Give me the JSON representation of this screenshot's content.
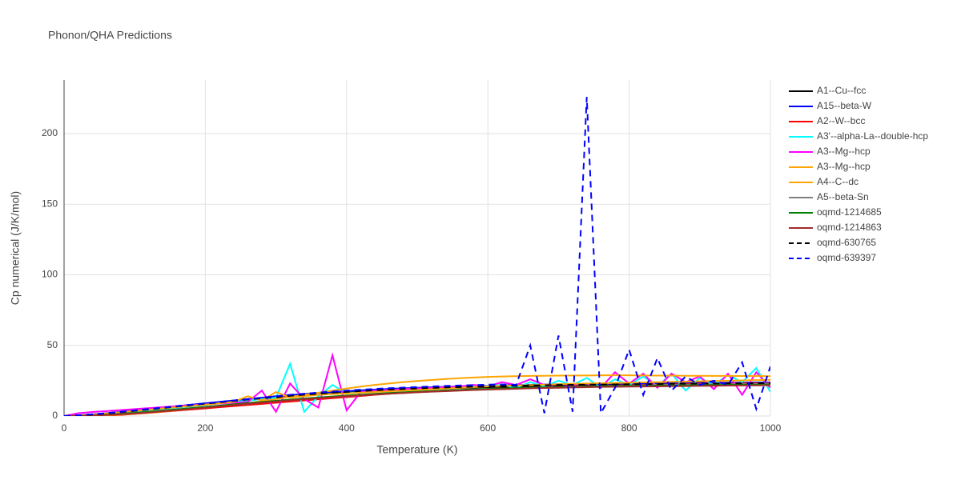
{
  "chart_data": {
    "type": "line",
    "title": "Phonon/QHA Predictions",
    "x_label": "Temperature (K)",
    "y_label": "Cp numerical (J/K/mol)",
    "xlim": [
      0,
      1000
    ],
    "ylim": [
      0,
      238
    ],
    "xticks": [
      0,
      200,
      400,
      600,
      800,
      1000
    ],
    "yticks": [
      0,
      50,
      100,
      150,
      200
    ],
    "grid": true,
    "legend": "right",
    "x": [
      0,
      20,
      40,
      60,
      80,
      100,
      120,
      140,
      160,
      180,
      200,
      220,
      240,
      260,
      280,
      300,
      320,
      340,
      360,
      380,
      400,
      420,
      440,
      460,
      480,
      500,
      520,
      540,
      560,
      580,
      600,
      620,
      640,
      660,
      680,
      700,
      720,
      740,
      760,
      780,
      800,
      820,
      840,
      860,
      880,
      900,
      920,
      940,
      960,
      980,
      1000
    ],
    "series": [
      {
        "name": "A1--Cu--fcc",
        "color": "#000000",
        "dash": "solid",
        "values": [
          0,
          0.2,
          0.6,
          1.2,
          2,
          3,
          4,
          5,
          6,
          7,
          8,
          9,
          10,
          11,
          12,
          12.8,
          13.6,
          14.4,
          15.1,
          15.8,
          16.4,
          17,
          17.5,
          18,
          18.4,
          18.8,
          19.2,
          19.5,
          19.8,
          20.1,
          20.4,
          20.6,
          20.8,
          21,
          21.2,
          21.4,
          21.6,
          21.8,
          22,
          22.1,
          22.2,
          22.3,
          22.4,
          22.5,
          22.6,
          22.7,
          22.8,
          22.9,
          23,
          23.1,
          23.2
        ]
      },
      {
        "name": "A15--beta-W",
        "color": "#0000ff",
        "dash": "solid",
        "values": [
          0,
          0.5,
          1.2,
          2,
          3,
          4,
          5,
          6,
          7,
          8,
          9,
          10,
          11,
          12,
          13,
          14,
          14.8,
          15.6,
          16.4,
          17,
          17.6,
          18.2,
          18.7,
          19.2,
          19.6,
          20,
          20.4,
          20.7,
          21,
          21.3,
          21.5,
          21.7,
          21.9,
          22.1,
          22.3,
          22.5,
          22.6,
          22.7,
          22.8,
          22.9,
          23,
          23.1,
          23.2,
          23.3,
          23.4,
          23.5,
          23.5,
          23.6,
          23.6,
          23.7,
          23.7
        ]
      },
      {
        "name": "A2--W--bcc",
        "color": "#ff0000",
        "dash": "solid",
        "values": [
          0,
          0,
          0,
          0.3,
          0.8,
          1.5,
          2.2,
          3,
          3.8,
          4.6,
          5.4,
          6.2,
          7,
          7.8,
          8.6,
          9.4,
          10.2,
          11,
          11.8,
          12.6,
          13.4,
          14.2,
          15,
          15.7,
          16.3,
          16.9,
          17.4,
          17.9,
          18.3,
          18.7,
          19.1,
          19.5,
          19.8,
          20.1,
          20.4,
          20.7,
          21,
          21.2,
          21.4,
          21.6,
          21.8,
          22,
          22.2,
          22.4,
          22.6,
          22.8,
          22.9,
          23,
          23.1,
          23.2,
          23.3
        ]
      },
      {
        "name": "A3'--alpha-La--double-hcp",
        "color": "#00ffff",
        "dash": "solid",
        "values": [
          0,
          0.3,
          0.8,
          1.5,
          2.3,
          3.2,
          4.1,
          5,
          6,
          7,
          8,
          9,
          10,
          11,
          12,
          13,
          37,
          3,
          14,
          22,
          16,
          17,
          18,
          18.5,
          19,
          19.5,
          20,
          20.5,
          21,
          21.2,
          21.5,
          22,
          20,
          24,
          21,
          25,
          22,
          27,
          20,
          26,
          22,
          28,
          21,
          30,
          18,
          27,
          22,
          29,
          24,
          34,
          17
        ]
      },
      {
        "name": "A3--Mg--hcp",
        "color": "#ff00ff",
        "dash": "solid",
        "values": [
          0,
          2,
          2.8,
          3.5,
          4.2,
          4.9,
          5.6,
          6.3,
          7,
          7.6,
          8.2,
          8.8,
          9.4,
          10,
          18,
          3,
          23,
          12,
          6,
          43,
          4,
          17,
          18,
          18.5,
          19,
          19.5,
          20,
          20.5,
          21,
          22,
          21,
          24,
          22,
          26,
          22,
          20,
          22,
          23,
          20,
          31,
          23,
          30,
          20,
          30,
          24,
          28,
          19,
          30,
          15,
          31,
          20
        ]
      },
      {
        "name": "A3--Mg--hcp",
        "color": "#ffa500",
        "dash": "solid",
        "values": [
          0,
          0.3,
          1,
          1.8,
          2.7,
          3.6,
          4.5,
          5.4,
          6.3,
          7.2,
          8.1,
          9,
          10,
          14,
          11,
          17,
          13,
          14,
          15,
          15.5,
          16,
          16.5,
          17,
          17.5,
          18,
          18.5,
          19,
          19.5,
          20,
          20.5,
          21,
          21.3,
          21.6,
          21.9,
          22.2,
          22.5,
          22.8,
          23,
          23.2,
          23.4,
          23.6,
          23.8,
          24,
          24.2,
          24.4,
          24.6,
          24.8,
          25,
          25.2,
          25.4,
          25.6
        ]
      },
      {
        "name": "A4--C--dc",
        "color": "#ffa500",
        "dash": "solid",
        "values": [
          0,
          0,
          0.2,
          0.5,
          1,
          1.6,
          2.3,
          3.1,
          4,
          5,
          6,
          7,
          8,
          9,
          10.5,
          12,
          13.5,
          15,
          16.5,
          18,
          19.5,
          20.8,
          22,
          23,
          24,
          24.8,
          25.5,
          26.2,
          26.8,
          27.3,
          27.7,
          28,
          28.2,
          28.4,
          28.5,
          28.6,
          28.7,
          28.7,
          28.8,
          28.8,
          28.8,
          28.7,
          28.6,
          28.6,
          28.5,
          28.5,
          28.4,
          28.4,
          28.3,
          28.3,
          28.2
        ]
      },
      {
        "name": "A5--beta-Sn",
        "color": "#808080",
        "dash": "solid",
        "values": [
          0,
          0.2,
          0.6,
          1.1,
          1.7,
          2.4,
          3.1,
          3.9,
          4.7,
          5.5,
          6.3,
          7.1,
          7.9,
          8.7,
          9.5,
          10.3,
          11.1,
          11.9,
          12.6,
          13.3,
          14,
          14.6,
          15.2,
          15.8,
          16.3,
          16.8,
          17.3,
          17.7,
          18.1,
          18.5,
          18.9,
          19.2,
          19.5,
          19.8,
          20.1,
          20.4,
          20.7,
          20.9,
          21.1,
          21.3,
          21.5,
          21.7,
          21.9,
          22.1,
          22.2,
          22.3,
          22.4,
          22.5,
          22.6,
          22.7,
          22.8
        ]
      },
      {
        "name": "oqmd-1214685",
        "color": "#008000",
        "dash": "solid",
        "values": [
          0,
          0.1,
          0.4,
          0.9,
          1.5,
          2.2,
          3,
          3.8,
          4.7,
          5.6,
          6.5,
          7.4,
          8.3,
          9.2,
          10,
          10.8,
          11.6,
          12.4,
          13.1,
          13.8,
          14.5,
          15.1,
          15.7,
          16.3,
          16.8,
          17.3,
          17.7,
          18.1,
          18.5,
          18.9,
          19.2,
          19.5,
          19.8,
          20.1,
          20.3,
          20.5,
          20.7,
          20.9,
          21.1,
          21.2,
          21.3,
          21.4,
          21.5,
          21.6,
          21.7,
          21.8,
          21.9,
          22,
          22.1,
          22.2,
          22.3
        ]
      },
      {
        "name": "oqmd-1214863",
        "color": "#a52a2a",
        "dash": "solid",
        "values": [
          0,
          0.1,
          0.3,
          0.7,
          1.2,
          1.8,
          2.5,
          3.3,
          4.1,
          5,
          5.9,
          6.8,
          7.7,
          8.6,
          9.5,
          10.3,
          11.1,
          11.9,
          12.6,
          13.3,
          14,
          14.6,
          15.2,
          15.8,
          16.3,
          16.8,
          17.2,
          17.6,
          18,
          18.4,
          18.7,
          19,
          19.3,
          19.6,
          19.8,
          20,
          20.2,
          20.4,
          20.6,
          20.7,
          20.8,
          20.9,
          21,
          21.1,
          21.2,
          21.3,
          21.4,
          21.5,
          21.6,
          21.7,
          21.8
        ]
      },
      {
        "name": "oqmd-630765",
        "color": "#000000",
        "dash": "dash",
        "values": [
          0,
          0.4,
          1,
          1.8,
          2.7,
          3.7,
          4.7,
          5.7,
          6.7,
          7.7,
          8.7,
          9.7,
          10.7,
          11.7,
          12.6,
          13.5,
          14.3,
          15.1,
          15.8,
          16.5,
          17.1,
          17.7,
          18.2,
          18.7,
          19.1,
          19.5,
          19.9,
          20.2,
          20.5,
          20.8,
          21,
          21.2,
          21.4,
          21.6,
          21.8,
          22,
          22.1,
          22.2,
          22.3,
          22.4,
          22.5,
          22.6,
          22.7,
          22.8,
          22.9,
          23,
          23,
          23.1,
          23.1,
          23.2,
          23.2
        ]
      },
      {
        "name": "oqmd-639397",
        "color": "#0000ff",
        "dash": "dash",
        "values": [
          0,
          0.5,
          1.2,
          2,
          3,
          4,
          5,
          6,
          7,
          8,
          9,
          10,
          11,
          12,
          13,
          14,
          15,
          15.8,
          16.6,
          17.3,
          18,
          18.6,
          19.2,
          19.7,
          20.1,
          20.5,
          20.9,
          21.3,
          21.6,
          21.9,
          22.2,
          22.4,
          22,
          50,
          2,
          57,
          3,
          226,
          2,
          20,
          47,
          15,
          41,
          18,
          28,
          22,
          25,
          22,
          38,
          5,
          35
        ]
      }
    ]
  }
}
